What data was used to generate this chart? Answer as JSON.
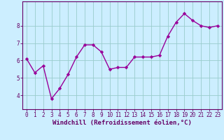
{
  "x": [
    0,
    1,
    2,
    3,
    4,
    5,
    6,
    7,
    8,
    9,
    10,
    11,
    12,
    13,
    14,
    15,
    16,
    17,
    18,
    19,
    20,
    21,
    22,
    23
  ],
  "y": [
    6.1,
    5.3,
    5.7,
    3.8,
    4.4,
    5.2,
    6.2,
    6.9,
    6.9,
    6.5,
    5.5,
    5.6,
    5.6,
    6.2,
    6.2,
    6.2,
    6.3,
    7.4,
    8.2,
    8.7,
    8.3,
    8.0,
    7.9,
    8.0
  ],
  "line_color": "#990099",
  "marker": "D",
  "marker_size": 2.2,
  "linewidth": 1.0,
  "xlabel": "Windchill (Refroidissement éolien,°C)",
  "xlabel_fontsize": 6.5,
  "bg_color": "#cceeff",
  "grid_color": "#99cccc",
  "axis_color": "#660066",
  "tick_color": "#660066",
  "ylim": [
    3.2,
    9.4
  ],
  "xlim": [
    -0.5,
    23.5
  ],
  "yticks": [
    4,
    5,
    6,
    7,
    8
  ],
  "xticks": [
    0,
    1,
    2,
    3,
    4,
    5,
    6,
    7,
    8,
    9,
    10,
    11,
    12,
    13,
    14,
    15,
    16,
    17,
    18,
    19,
    20,
    21,
    22,
    23
  ],
  "tick_fontsize": 5.5
}
